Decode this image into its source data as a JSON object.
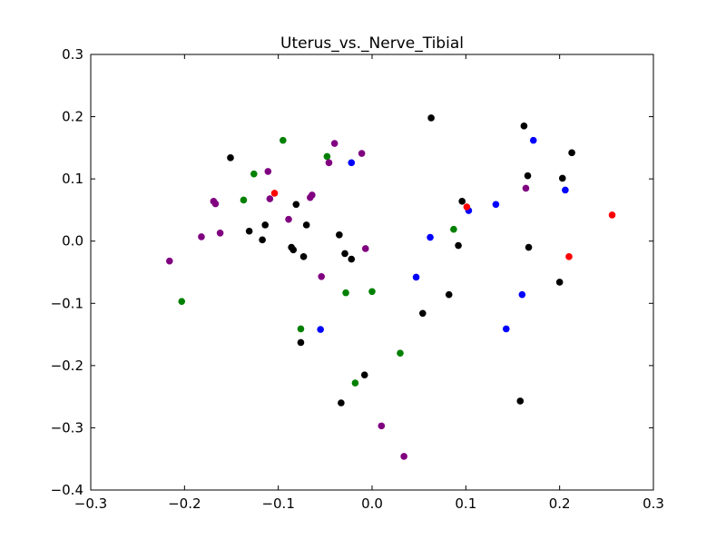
{
  "chart_data": {
    "type": "scatter",
    "title": "Uterus_vs._Nerve_Tibial",
    "xlabel": "",
    "ylabel": "",
    "xlim": [
      -0.3,
      0.3
    ],
    "ylim": [
      -0.4,
      0.3
    ],
    "x_ticks": [
      -0.3,
      -0.2,
      -0.1,
      0.0,
      0.1,
      0.2,
      0.3
    ],
    "x_tick_labels": [
      "−0.3",
      "−0.2",
      "−0.1",
      "0.0",
      "0.1",
      "0.2",
      "0.3"
    ],
    "y_ticks": [
      -0.4,
      -0.3,
      -0.2,
      -0.1,
      0.0,
      0.1,
      0.2,
      0.3
    ],
    "y_tick_labels": [
      "−0.4",
      "−0.3",
      "−0.2",
      "−0.1",
      "0.0",
      "0.1",
      "0.2",
      "0.3"
    ],
    "grid": false,
    "legend": "none",
    "series": [
      {
        "color": "#000000",
        "points": [
          [
            -0.151,
            0.134
          ],
          [
            -0.131,
            0.016
          ],
          [
            -0.117,
            0.002
          ],
          [
            -0.114,
            0.026
          ],
          [
            -0.086,
            -0.01
          ],
          [
            -0.084,
            -0.014
          ],
          [
            -0.081,
            0.059
          ],
          [
            -0.076,
            -0.163
          ],
          [
            -0.073,
            -0.025
          ],
          [
            -0.07,
            0.026
          ],
          [
            -0.035,
            0.01
          ],
          [
            -0.033,
            -0.26
          ],
          [
            -0.029,
            -0.02
          ],
          [
            -0.022,
            -0.029
          ],
          [
            -0.008,
            -0.215
          ],
          [
            0.054,
            -0.116
          ],
          [
            0.063,
            0.198
          ],
          [
            0.082,
            -0.086
          ],
          [
            0.092,
            -0.007
          ],
          [
            0.096,
            0.064
          ],
          [
            0.158,
            -0.257
          ],
          [
            0.162,
            0.185
          ],
          [
            0.166,
            0.105
          ],
          [
            0.167,
            -0.01
          ],
          [
            0.2,
            -0.066
          ],
          [
            0.203,
            0.101
          ],
          [
            0.213,
            0.142
          ]
        ]
      },
      {
        "color": "#0000ff",
        "points": [
          [
            -0.055,
            -0.142
          ],
          [
            -0.022,
            0.126
          ],
          [
            0.047,
            -0.058
          ],
          [
            0.062,
            0.006
          ],
          [
            0.103,
            0.049
          ],
          [
            0.132,
            0.059
          ],
          [
            0.143,
            -0.141
          ],
          [
            0.16,
            -0.086
          ],
          [
            0.172,
            0.162
          ],
          [
            0.206,
            0.082
          ]
        ]
      },
      {
        "color": "#008000",
        "points": [
          [
            -0.203,
            -0.097
          ],
          [
            -0.137,
            0.066
          ],
          [
            -0.126,
            0.108
          ],
          [
            -0.095,
            0.162
          ],
          [
            -0.076,
            -0.141
          ],
          [
            -0.048,
            0.136
          ],
          [
            -0.028,
            -0.083
          ],
          [
            -0.018,
            -0.228
          ],
          [
            0.0,
            -0.081
          ],
          [
            0.03,
            -0.18
          ],
          [
            0.087,
            0.019
          ]
        ]
      },
      {
        "color": "#ff0000",
        "points": [
          [
            -0.104,
            0.077
          ],
          [
            0.101,
            0.055
          ],
          [
            0.21,
            -0.025
          ],
          [
            0.256,
            0.042
          ]
        ]
      },
      {
        "color": "#800080",
        "points": [
          [
            -0.216,
            -0.032
          ],
          [
            -0.182,
            0.007
          ],
          [
            -0.169,
            0.064
          ],
          [
            -0.167,
            0.06
          ],
          [
            -0.162,
            0.013
          ],
          [
            -0.111,
            0.112
          ],
          [
            -0.109,
            0.068
          ],
          [
            -0.089,
            0.035
          ],
          [
            -0.066,
            0.07
          ],
          [
            -0.064,
            0.074
          ],
          [
            -0.054,
            -0.057
          ],
          [
            -0.046,
            0.126
          ],
          [
            -0.04,
            0.157
          ],
          [
            -0.011,
            0.141
          ],
          [
            -0.007,
            -0.012
          ],
          [
            0.01,
            -0.297
          ],
          [
            0.034,
            -0.346
          ],
          [
            0.164,
            0.085
          ]
        ]
      }
    ]
  }
}
